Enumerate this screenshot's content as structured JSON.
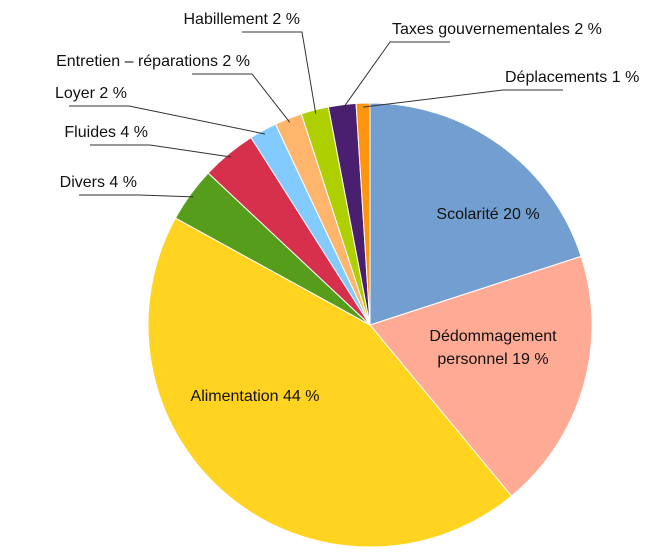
{
  "chart_data": {
    "type": "pie",
    "labels": [
      [
        "Scolarité 20 %"
      ],
      [
        "Dédommagement",
        "personnel 19 %"
      ],
      [
        "Alimentation 44 %"
      ],
      [
        "Divers 4 %"
      ],
      [
        "Fluides 4 %"
      ],
      [
        "Loyer 2 %"
      ],
      [
        "Entretien – réparations 2 %"
      ],
      [
        "Habillement 2 %"
      ],
      [
        "Taxes gouvernementales 2 %"
      ],
      [
        "Déplacements 1 %"
      ]
    ],
    "values": [
      20,
      19,
      44,
      4,
      4,
      2,
      2,
      2,
      2,
      1
    ],
    "colors": [
      "#729fcf",
      "#ffaa95",
      "#ffd320",
      "#579d1c",
      "#d6304d",
      "#83caff",
      "#ffb66c",
      "#aecf00",
      "#4b1f6f",
      "#ff950e"
    ]
  }
}
